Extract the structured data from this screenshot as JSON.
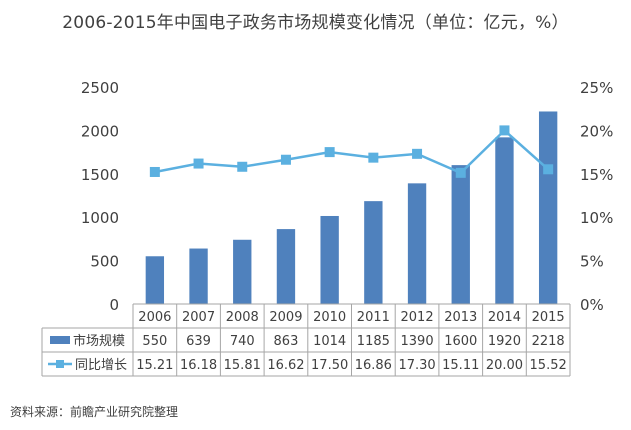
{
  "chart_data": {
    "type": "bar",
    "title": "2006-2015年中国电子政务市场规模变化情况（单位：亿元，%）",
    "categories": [
      "2006",
      "2007",
      "2008",
      "2009",
      "2010",
      "2011",
      "2012",
      "2013",
      "2014",
      "2015"
    ],
    "series": [
      {
        "name": "市场规模",
        "type": "bar",
        "axis": "left",
        "color": "#4f81bd",
        "values": [
          550,
          639,
          740,
          863,
          1014,
          1185,
          1390,
          1600,
          1920,
          2218
        ],
        "labels": [
          "550",
          "639",
          "740",
          "863",
          "1014",
          "1185",
          "1390",
          "1600",
          "1920",
          "2218"
        ]
      },
      {
        "name": "同比增长",
        "type": "line",
        "axis": "right",
        "color": "#5bb0e0",
        "values": [
          15.21,
          16.18,
          15.81,
          16.62,
          17.5,
          16.86,
          17.3,
          15.11,
          20.0,
          15.52
        ],
        "labels": [
          "15.21",
          "16.18",
          "15.81",
          "16.62",
          "17.50",
          "16.86",
          "17.30",
          "15.11",
          "20.00",
          "15.52"
        ]
      }
    ],
    "y_left": {
      "min": 0,
      "max": 2500,
      "step": 500,
      "ticks": [
        "0",
        "500",
        "1000",
        "1500",
        "2000",
        "2500"
      ]
    },
    "y_right": {
      "min": 0,
      "max": 25,
      "step": 5,
      "ticks": [
        "0%",
        "5%",
        "10%",
        "15%",
        "20%",
        "25%"
      ]
    },
    "grid": false,
    "legend": "data-table"
  },
  "source": "资料来源：前瞻产业研究院整理"
}
